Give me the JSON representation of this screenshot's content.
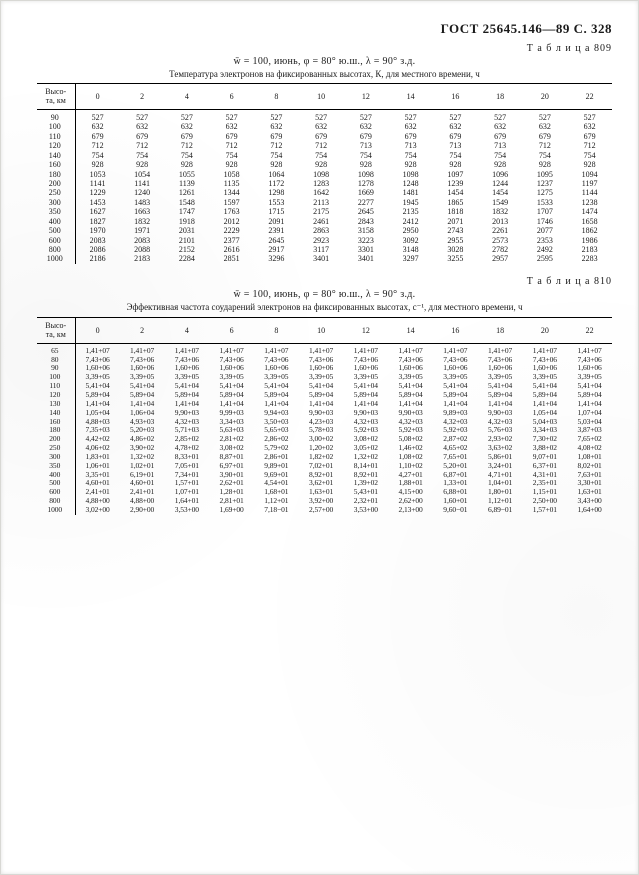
{
  "header": {
    "gost": "ГОСТ 25645.146—89  С. 328"
  },
  "common": {
    "height_col": "Высо-\nта, км"
  },
  "hours": [
    "0",
    "2",
    "4",
    "6",
    "8",
    "10",
    "12",
    "14",
    "16",
    "18",
    "20",
    "22"
  ],
  "t809": {
    "label": "Т а б л и ц а  809",
    "conditions": "w̄ = 100, июнь, φ = 80° ю.ш., λ = 90° з.д.",
    "caption": "Температура электронов на фиксированных высотах, К, для местного времени, ч",
    "heights": [
      "90",
      "100",
      "110",
      "120",
      "140",
      "160",
      "180",
      "200",
      "250",
      "300",
      "350",
      "400",
      "500",
      "600",
      "800",
      "1000"
    ],
    "rows": [
      [
        "527",
        "527",
        "527",
        "527",
        "527",
        "527",
        "527",
        "527",
        "527",
        "527",
        "527",
        "527"
      ],
      [
        "632",
        "632",
        "632",
        "632",
        "632",
        "632",
        "632",
        "632",
        "632",
        "632",
        "632",
        "632"
      ],
      [
        "679",
        "679",
        "679",
        "679",
        "679",
        "679",
        "679",
        "679",
        "679",
        "679",
        "679",
        "679"
      ],
      [
        "712",
        "712",
        "712",
        "712",
        "712",
        "712",
        "713",
        "713",
        "713",
        "713",
        "712",
        "712"
      ],
      [
        "754",
        "754",
        "754",
        "754",
        "754",
        "754",
        "754",
        "754",
        "754",
        "754",
        "754",
        "754"
      ],
      [
        "928",
        "928",
        "928",
        "928",
        "928",
        "928",
        "928",
        "928",
        "928",
        "928",
        "928",
        "928"
      ],
      [
        "1053",
        "1054",
        "1055",
        "1058",
        "1064",
        "1098",
        "1098",
        "1098",
        "1097",
        "1096",
        "1095",
        "1094"
      ],
      [
        "1141",
        "1141",
        "1139",
        "1135",
        "1172",
        "1283",
        "1278",
        "1248",
        "1239",
        "1244",
        "1237",
        "1197"
      ],
      [
        "1229",
        "1240",
        "1261",
        "1344",
        "1298",
        "1642",
        "1669",
        "1481",
        "1454",
        "1454",
        "1275",
        "1144"
      ],
      [
        "1453",
        "1483",
        "1548",
        "1597",
        "1553",
        "2113",
        "2277",
        "1945",
        "1865",
        "1549",
        "1533",
        "1238"
      ],
      [
        "1627",
        "1663",
        "1747",
        "1763",
        "1715",
        "2175",
        "2645",
        "2135",
        "1818",
        "1832",
        "1707",
        "1474"
      ],
      [
        "1827",
        "1832",
        "1918",
        "2012",
        "2091",
        "2461",
        "2843",
        "2412",
        "2071",
        "2013",
        "1746",
        "1658"
      ],
      [
        "1970",
        "1971",
        "2031",
        "2229",
        "2391",
        "2863",
        "3158",
        "2950",
        "2743",
        "2261",
        "2077",
        "1862"
      ],
      [
        "2083",
        "2083",
        "2101",
        "2377",
        "2645",
        "2923",
        "3223",
        "3092",
        "2955",
        "2573",
        "2353",
        "1986"
      ],
      [
        "2086",
        "2088",
        "2152",
        "2616",
        "2917",
        "3117",
        "3301",
        "3148",
        "3028",
        "2782",
        "2492",
        "2183"
      ],
      [
        "2186",
        "2183",
        "2284",
        "2851",
        "3296",
        "3401",
        "3401",
        "3297",
        "3255",
        "2957",
        "2595",
        "2283"
      ]
    ]
  },
  "t810": {
    "label": "Т а б л и ц а  810",
    "conditions": "w̄ = 100, июнь, φ = 80° ю.ш., λ = 90° з.д.",
    "caption": "Эффективная частота соударений электронов на фиксированных высотах, с⁻¹, для местного времени, ч",
    "heights": [
      "65",
      "80",
      "90",
      "100",
      "110",
      "120",
      "130",
      "140",
      "160",
      "180",
      "200",
      "250",
      "300",
      "350",
      "400",
      "500",
      "600",
      "800",
      "1000"
    ],
    "rows": [
      [
        "1,41+07",
        "1,41+07",
        "1,41+07",
        "1,41+07",
        "1,41+07",
        "1,41+07",
        "1,41+07",
        "1,41+07",
        "1,41+07",
        "1,41+07",
        "1,41+07",
        "1,41+07"
      ],
      [
        "7,43+06",
        "7,43+06",
        "7,43+06",
        "7,43+06",
        "7,43+06",
        "7,43+06",
        "7,43+06",
        "7,43+06",
        "7,43+06",
        "7,43+06",
        "7,43+06",
        "7,43+06"
      ],
      [
        "1,60+06",
        "1,60+06",
        "1,60+06",
        "1,60+06",
        "1,60+06",
        "1,60+06",
        "1,60+06",
        "1,60+06",
        "1,60+06",
        "1,60+06",
        "1,60+06",
        "1,60+06"
      ],
      [
        "3,39+05",
        "3,39+05",
        "3,39+05",
        "3,39+05",
        "3,39+05",
        "3,39+05",
        "3,39+05",
        "3,39+05",
        "3,39+05",
        "3,39+05",
        "3,39+05",
        "3,39+05"
      ],
      [
        "5,41+04",
        "5,41+04",
        "5,41+04",
        "5,41+04",
        "5,41+04",
        "5,41+04",
        "5,41+04",
        "5,41+04",
        "5,41+04",
        "5,41+04",
        "5,41+04",
        "5,41+04"
      ],
      [
        "5,89+04",
        "5,89+04",
        "5,89+04",
        "5,89+04",
        "5,89+04",
        "5,89+04",
        "5,89+04",
        "5,89+04",
        "5,89+04",
        "5,89+04",
        "5,89+04",
        "5,89+04"
      ],
      [
        "1,41+04",
        "1,41+04",
        "1,41+04",
        "1,41+04",
        "1,41+04",
        "1,41+04",
        "1,41+04",
        "1,41+04",
        "1,41+04",
        "1,41+04",
        "1,41+04",
        "1,41+04"
      ],
      [
        "1,05+04",
        "1,06+04",
        "9,90+03",
        "9,99+03",
        "9,94+03",
        "9,90+03",
        "9,90+03",
        "9,90+03",
        "9,89+03",
        "9,90+03",
        "1,05+04",
        "1,07+04"
      ],
      [
        "4,88+03",
        "4,93+03",
        "4,32+03",
        "3,34+03",
        "3,50+03",
        "4,23+03",
        "4,32+03",
        "4,32+03",
        "4,32+03",
        "4,32+03",
        "5,04+03",
        "5,03+04"
      ],
      [
        "7,35+03",
        "5,20+03",
        "5,71+03",
        "5,63+03",
        "5,65+03",
        "5,78+03",
        "5,92+03",
        "5,92+03",
        "5,92+03",
        "5,76+03",
        "3,34+03",
        "3,87+03"
      ],
      [
        "4,42+02",
        "4,86+02",
        "2,85+02",
        "2,81+02",
        "2,86+02",
        "3,00+02",
        "3,08+02",
        "5,08+02",
        "2,87+02",
        "2,93+02",
        "7,30+02",
        "7,65+02"
      ],
      [
        "4,06+02",
        "3,90+02",
        "4,78+02",
        "3,08+02",
        "5,79+02",
        "1,20+02",
        "3,05+02",
        "1,46+02",
        "4,65+02",
        "3,63+02",
        "3,88+02",
        "4,08+02"
      ],
      [
        "1,83+01",
        "1,32+02",
        "8,33+01",
        "8,87+01",
        "2,86+01",
        "1,82+02",
        "1,32+02",
        "1,08+02",
        "7,65+01",
        "5,86+01",
        "9,07+01",
        "1,08+01"
      ],
      [
        "1,06+01",
        "1,02+01",
        "7,05+01",
        "6,97+01",
        "9,89+01",
        "7,02+01",
        "8,14+01",
        "1,10+02",
        "5,20+01",
        "3,24+01",
        "6,37+01",
        "8,02+01"
      ],
      [
        "3,35+01",
        "6,19+01",
        "7,34+01",
        "3,90+01",
        "9,69+01",
        "8,92+01",
        "8,92+01",
        "4,27+01",
        "6,87+01",
        "4,71+01",
        "4,31+01",
        "7,63+01"
      ],
      [
        "4,60+01",
        "4,60+01",
        "1,57+01",
        "2,62+01",
        "4,54+01",
        "3,62+01",
        "1,39+02",
        "1,88+01",
        "1,33+01",
        "1,04+01",
        "2,35+01",
        "3,30+01"
      ],
      [
        "2,41+01",
        "2,41+01",
        "1,07+01",
        "1,28+01",
        "1,68+01",
        "1,63+01",
        "5,43+01",
        "4,15+00",
        "6,88+01",
        "1,80+01",
        "1,15+01",
        "1,63+01"
      ],
      [
        "4,88+00",
        "4,88+00",
        "1,64+01",
        "2,81+01",
        "1,12+01",
        "3,92+00",
        "2,32+01",
        "2,62+00",
        "1,60+01",
        "1,12+01",
        "2,50+00",
        "3,43+00"
      ],
      [
        "3,02+00",
        "2,90+00",
        "3,53+00",
        "1,69+00",
        "7,18−01",
        "2,57+00",
        "3,53+00",
        "2,13+00",
        "9,60−01",
        "6,89−01",
        "1,57+01",
        "1,64+00"
      ]
    ]
  }
}
